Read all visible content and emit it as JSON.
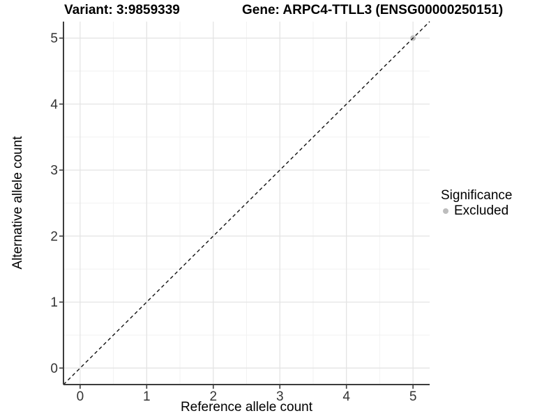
{
  "chart_data": {
    "type": "scatter",
    "title_left": "Variant: 3:9859339",
    "title_right": "Gene: ARPC4-TTLL3 (ENSG00000250151)",
    "xlabel": "Reference allele count",
    "ylabel": "Alternative allele count",
    "xlim": [
      -0.25,
      5.25
    ],
    "ylim": [
      -0.25,
      5.25
    ],
    "x_ticks": [
      0,
      1,
      2,
      3,
      4,
      5
    ],
    "y_ticks": [
      0,
      1,
      2,
      3,
      4,
      5
    ],
    "x_minor_ticks": [
      0.5,
      1.5,
      2.5,
      3.5,
      4.5
    ],
    "y_minor_ticks": [
      0.5,
      1.5,
      2.5,
      3.5,
      4.5
    ],
    "grid": "major+minor",
    "series": [
      {
        "name": "Excluded",
        "color": "#bdbdbd",
        "points": [
          {
            "x": 5,
            "y": 5
          }
        ]
      }
    ],
    "reference_line": {
      "slope": 1,
      "intercept": 0,
      "style": "dashed",
      "color": "#111111"
    },
    "legend": {
      "title": "Significance",
      "position": "right"
    },
    "colors": {
      "grid_major": "#e4e4e4",
      "grid_minor": "#f2f2f2",
      "axis_line": "#3c3c3c",
      "tick_label": "#333333"
    }
  }
}
